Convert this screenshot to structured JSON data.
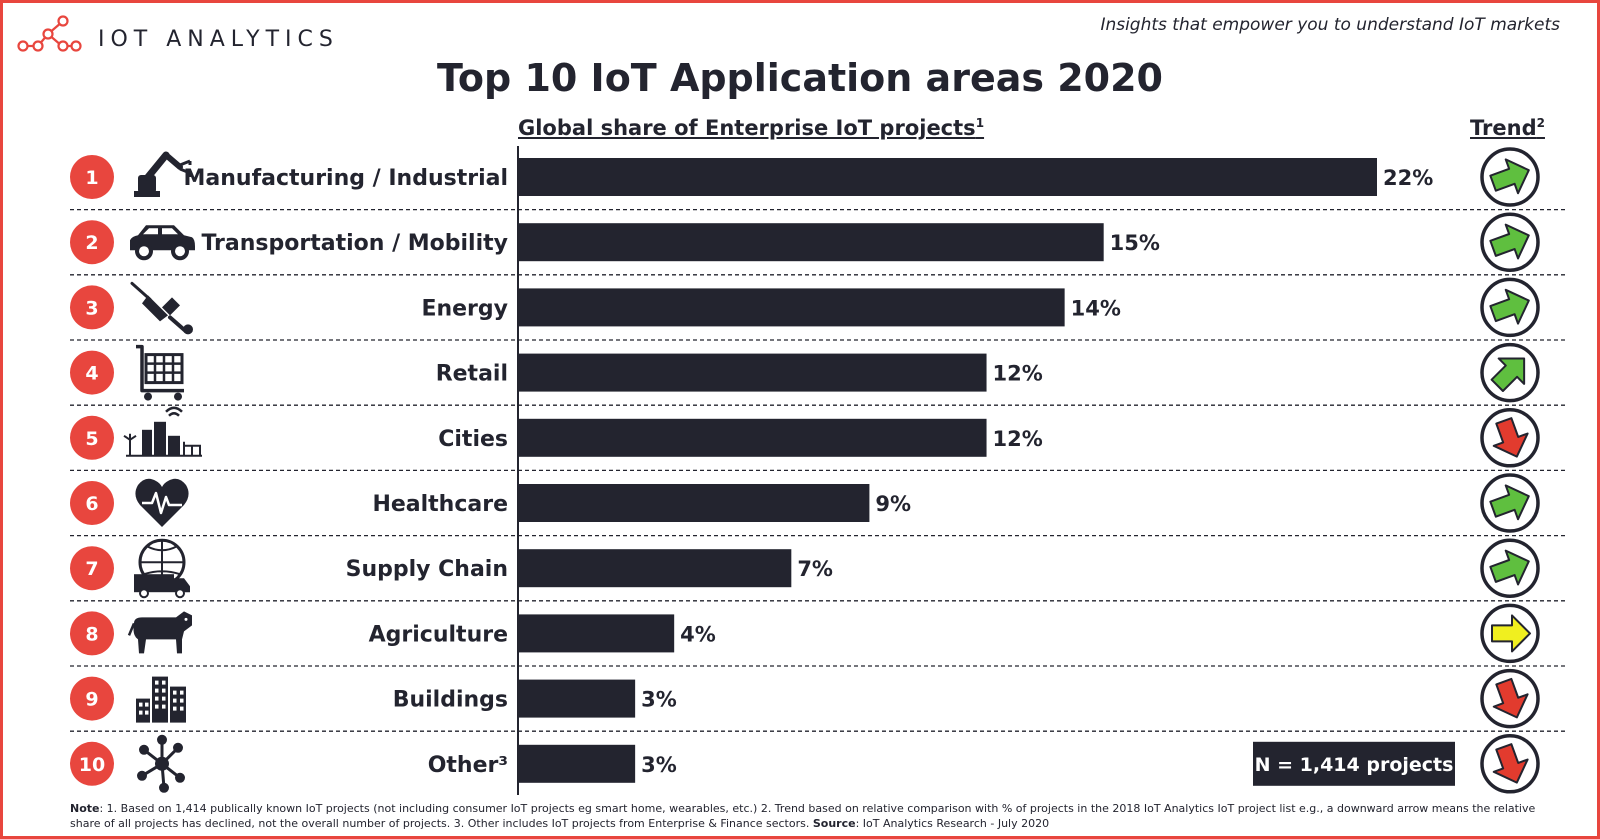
{
  "brand": {
    "name": "IOT ANALYTICS",
    "tagline": "Insights that empower you to understand IoT markets"
  },
  "colors": {
    "accent": "#e8463e",
    "bar": "#23242f",
    "trend_green": "#5fbf3f",
    "trend_yellow": "#f0ef1f",
    "trend_red": "#e23b2e"
  },
  "chart_data": {
    "type": "bar",
    "title": "Top 10 IoT Application areas 2020",
    "subtitle": "Global share of Enterprise IoT projects",
    "subtitle_sup": "1",
    "trend_header": "Trend",
    "trend_sup": "2",
    "value_unit": "%",
    "categories": [
      "Manufacturing / Industrial",
      "Transportation / Mobility",
      "Energy",
      "Retail",
      "Cities",
      "Healthcare",
      "Supply Chain",
      "Agriculture",
      "Buildings",
      "Other³"
    ],
    "ranks": [
      "1",
      "2",
      "3",
      "4",
      "5",
      "6",
      "7",
      "8",
      "9",
      "10"
    ],
    "values": [
      22,
      15,
      14,
      12,
      12,
      9,
      7,
      4,
      3,
      3
    ],
    "value_labels": [
      "22%",
      "15%",
      "14%",
      "12%",
      "12%",
      "9%",
      "7%",
      "4%",
      "3%",
      "3%"
    ],
    "icons": [
      "robot-arm-icon",
      "car-icon",
      "plug-icon",
      "shopping-cart-icon",
      "city-icon",
      "heart-pulse-icon",
      "globe-truck-icon",
      "cow-icon",
      "buildings-icon",
      "network-icon"
    ],
    "trends": [
      "right-up",
      "right-up",
      "right-up",
      "up",
      "down",
      "right-up",
      "right-up",
      "right",
      "down",
      "down"
    ],
    "trend_colors": [
      "green",
      "green",
      "green",
      "green",
      "red",
      "green",
      "green",
      "yellow",
      "red",
      "red"
    ],
    "xlim": [
      0,
      22
    ],
    "legend_note": "N = 1,414 projects"
  },
  "note": {
    "label": "Note",
    "text": ": 1. Based on 1,414 publically known IoT projects (not including consumer IoT projects eg smart home, wearables, etc.) 2. Trend based on relative comparison with % of projects in the 2018 IoT Analytics IoT project list e.g., a downward arrow means the relative share of all projects has declined, not the overall number of projects. 3. Other includes IoT projects from Enterprise & Finance sectors.",
    "source_label": "Source",
    "source_text": ": IoT Analytics Research - July 2020"
  }
}
